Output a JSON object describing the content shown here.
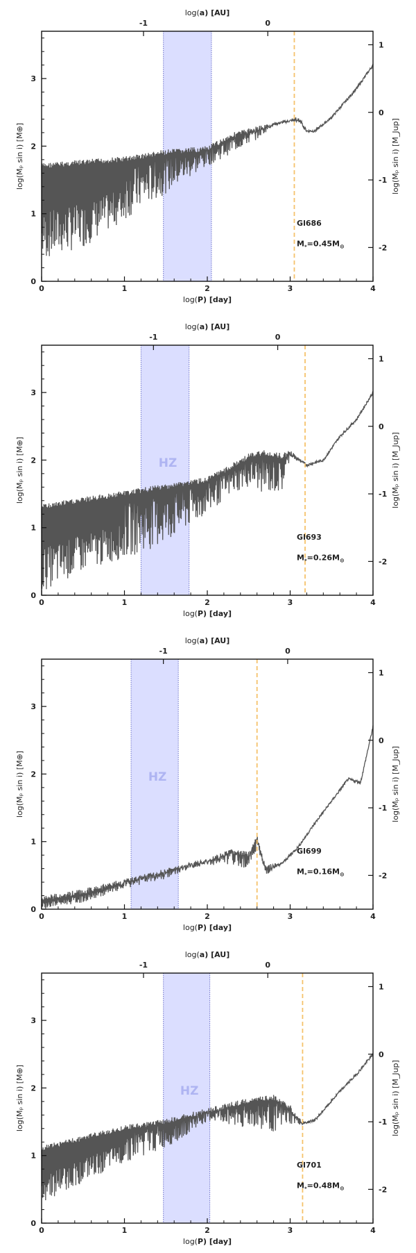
{
  "chart_data": [
    {
      "type": "line",
      "star": "Gl686",
      "mass_label": "M",
      "mass_sub": "*",
      "mass_value": "=0.45M",
      "mass_suffix": "⊙",
      "hz_label": "",
      "hz_range": [
        1.47,
        2.05
      ],
      "snow_line": 3.05,
      "top_ticks": [
        {
          "value": -1,
          "label": "-1",
          "pos": 1.23
        },
        {
          "value": 0,
          "label": "0",
          "pos": 2.73
        }
      ],
      "x": [
        0,
        0.5,
        1.0,
        1.5,
        2.0,
        2.3,
        2.6,
        2.8,
        3.0,
        3.1,
        3.2,
        3.3,
        3.5,
        3.8,
        4.0
      ],
      "y_upper": [
        1.75,
        1.8,
        1.85,
        1.95,
        2.0,
        2.2,
        2.3,
        2.35,
        2.4,
        2.45,
        2.25,
        2.25,
        2.45,
        2.85,
        3.2
      ],
      "y_lower": [
        0.3,
        0.5,
        0.9,
        1.3,
        1.7,
        1.9,
        2.1,
        2.3,
        2.35,
        2.35,
        2.2,
        2.2,
        2.4,
        2.85,
        3.2
      ]
    },
    {
      "type": "line",
      "star": "Gl693",
      "mass_label": "M",
      "mass_sub": "*",
      "mass_value": "=0.26M",
      "mass_suffix": "⊙",
      "hz_label": "HZ",
      "hz_range": [
        1.2,
        1.78
      ],
      "snow_line": 3.18,
      "top_ticks": [
        {
          "value": -1,
          "label": "-1",
          "pos": 1.35
        },
        {
          "value": 0,
          "label": "0",
          "pos": 2.85
        }
      ],
      "x": [
        0,
        0.5,
        1.0,
        1.5,
        2.0,
        2.3,
        2.5,
        2.7,
        2.9,
        3.0,
        3.2,
        3.4,
        3.6,
        3.8,
        4.0
      ],
      "y_upper": [
        1.35,
        1.45,
        1.55,
        1.65,
        1.75,
        1.95,
        2.1,
        2.15,
        2.1,
        2.15,
        1.95,
        2.0,
        2.35,
        2.6,
        3.0
      ],
      "y_lower": [
        0.05,
        0.35,
        0.55,
        0.75,
        1.2,
        1.5,
        1.6,
        1.5,
        1.5,
        2.05,
        1.9,
        2.0,
        2.35,
        2.6,
        3.0
      ]
    },
    {
      "type": "line",
      "star": "Gl699",
      "mass_label": "M",
      "mass_sub": "*",
      "mass_value": "=0.16M",
      "mass_suffix": "⊙",
      "hz_label": "HZ",
      "hz_range": [
        1.08,
        1.65
      ],
      "snow_line": 2.6,
      "top_ticks": [
        {
          "value": -1,
          "label": "-1",
          "pos": 1.47
        },
        {
          "value": 0,
          "label": "0",
          "pos": 2.97
        }
      ],
      "x": [
        0,
        0.5,
        1.0,
        1.5,
        1.8,
        2.0,
        2.3,
        2.5,
        2.6,
        2.7,
        2.9,
        3.1,
        3.3,
        3.5,
        3.7,
        3.85,
        4.0
      ],
      "y_upper": [
        0.2,
        0.3,
        0.45,
        0.6,
        0.7,
        0.75,
        0.9,
        0.85,
        1.1,
        0.65,
        0.7,
        0.95,
        1.3,
        1.6,
        1.95,
        1.9,
        2.7
      ],
      "y_lower": [
        0.0,
        0.1,
        0.3,
        0.45,
        0.6,
        0.65,
        0.65,
        0.6,
        0.9,
        0.5,
        0.65,
        0.9,
        1.25,
        1.6,
        1.9,
        1.85,
        2.7
      ]
    },
    {
      "type": "line",
      "star": "Gl701",
      "mass_label": "M",
      "mass_sub": "*",
      "mass_value": "=0.48M",
      "mass_suffix": "⊙",
      "hz_label": "HZ",
      "hz_range": [
        1.47,
        2.03
      ],
      "snow_line": 3.15,
      "top_ticks": [
        {
          "value": -1,
          "label": "-1",
          "pos": 1.23
        },
        {
          "value": 0,
          "label": "0",
          "pos": 2.73
        }
      ],
      "x": [
        0,
        0.5,
        1.0,
        1.5,
        2.0,
        2.3,
        2.5,
        2.8,
        3.0,
        3.15,
        3.3,
        3.6,
        3.8,
        4.0
      ],
      "y_upper": [
        1.15,
        1.3,
        1.45,
        1.55,
        1.7,
        1.8,
        1.85,
        1.9,
        1.75,
        1.5,
        1.55,
        1.95,
        2.2,
        2.5
      ],
      "y_lower": [
        0.3,
        0.6,
        0.9,
        1.1,
        1.5,
        1.45,
        1.4,
        1.35,
        1.45,
        1.45,
        1.5,
        1.95,
        2.2,
        2.5
      ]
    }
  ],
  "axes": {
    "x_label_prefix": "log(",
    "x_label_var": "P",
    "x_label_suffix": ") [day]",
    "top_label_prefix": "log(",
    "top_label_var": "a",
    "top_label_suffix": ") [AU]",
    "y_label": "log(Mₚ sin i) [M⊕]",
    "y2_label": "log(Mₚ sin i) [M_Jup]",
    "x_ticks": [
      "0",
      "1",
      "2",
      "3",
      "4"
    ],
    "y_ticks": [
      "0",
      "1",
      "2",
      "3"
    ],
    "y2_ticks": [
      "-2",
      "-1",
      "0",
      "1"
    ],
    "x_range": [
      0,
      4
    ],
    "y_range": [
      0,
      3.7
    ],
    "y2_offset": 2.5
  },
  "colors": {
    "curve": "#555555",
    "hz_fill": "#d9dcff",
    "hz_edge": "#6f74cc",
    "snow_line": "#f5c26b",
    "axis": "#111111"
  }
}
